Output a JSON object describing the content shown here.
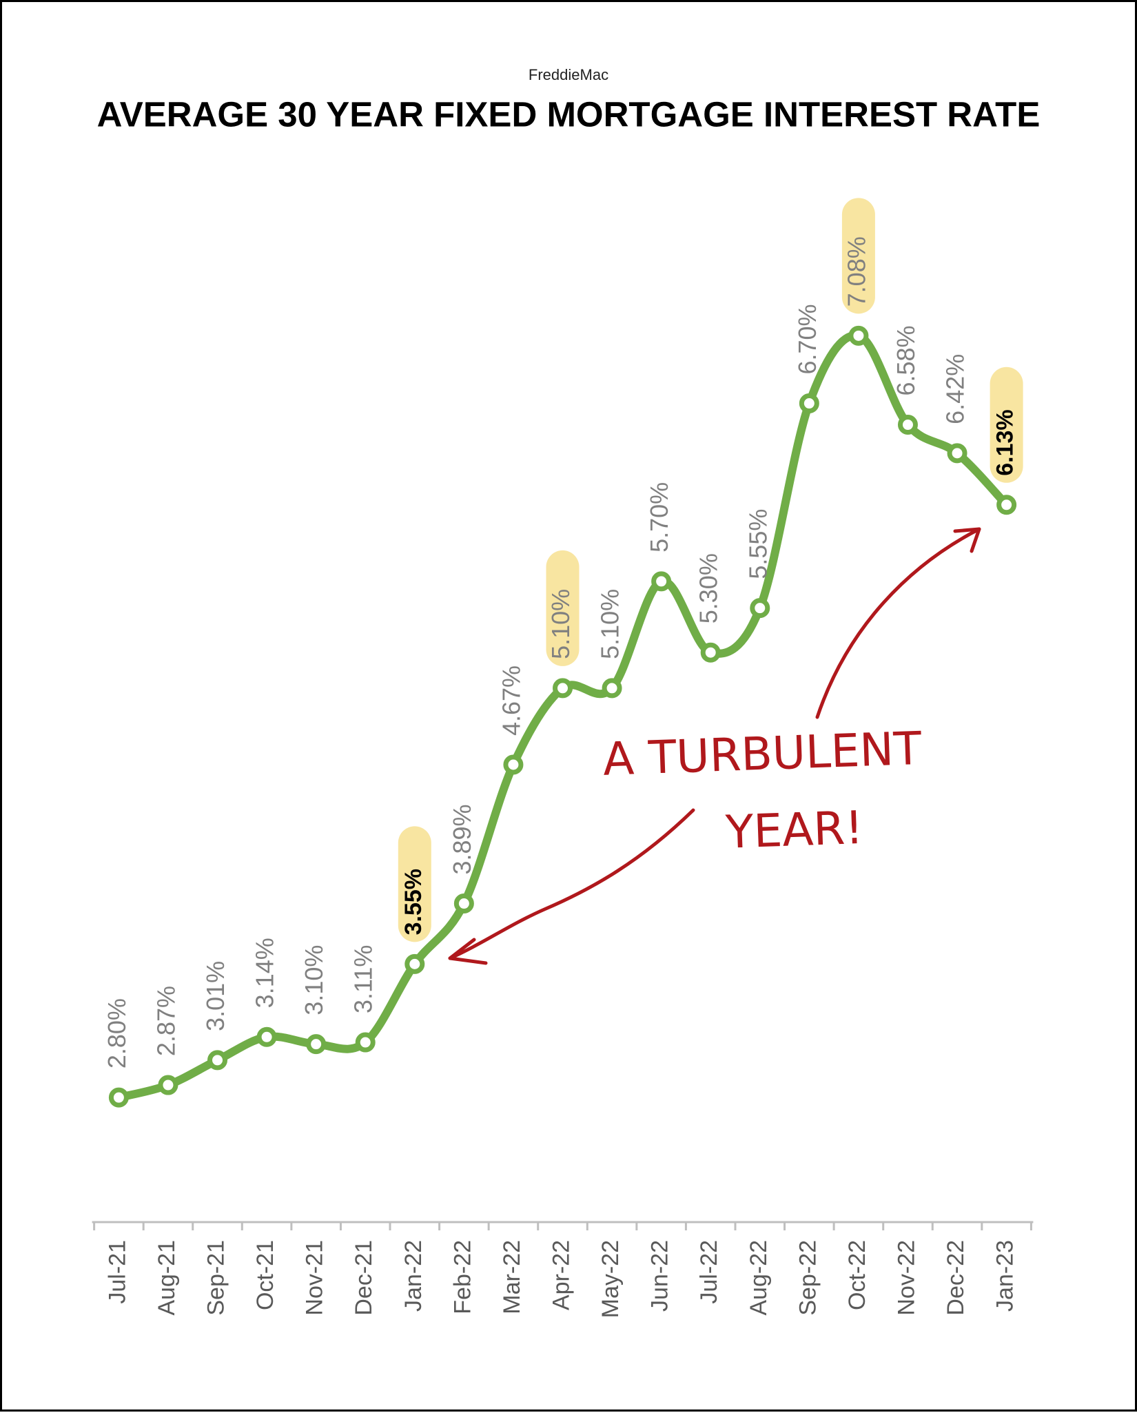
{
  "chart_data": {
    "type": "line",
    "subtitle": "FreddieMac",
    "title": "AVERAGE 30 YEAR FIXED MORTGAGE INTEREST RATE",
    "categories": [
      "Jul-21",
      "Aug-21",
      "Sep-21",
      "Oct-21",
      "Nov-21",
      "Dec-21",
      "Jan-22",
      "Feb-22",
      "Mar-22",
      "Apr-22",
      "May-22",
      "Jun-22",
      "Jul-22",
      "Aug-22",
      "Sep-22",
      "Oct-22",
      "Nov-22",
      "Dec-22",
      "Jan-23"
    ],
    "values": [
      2.8,
      2.87,
      3.01,
      3.14,
      3.1,
      3.11,
      3.55,
      3.89,
      4.67,
      5.1,
      5.1,
      5.7,
      5.3,
      5.55,
      6.7,
      7.08,
      6.58,
      6.42,
      6.13
    ],
    "value_labels": [
      "2.80%",
      "2.87%",
      "3.01%",
      "3.14%",
      "3.10%",
      "3.11%",
      "3.55%",
      "3.89%",
      "4.67%",
      "5.10%",
      "5.10%",
      "5.70%",
      "5.30%",
      "5.55%",
      "6.70%",
      "7.08%",
      "6.58%",
      "6.42%",
      "6.13%"
    ],
    "highlight": [
      false,
      false,
      false,
      false,
      false,
      false,
      true,
      false,
      false,
      true,
      false,
      false,
      false,
      false,
      false,
      true,
      false,
      false,
      true
    ],
    "bold_labels": [
      false,
      false,
      false,
      false,
      false,
      false,
      true,
      false,
      false,
      false,
      false,
      false,
      false,
      false,
      false,
      false,
      false,
      false,
      true
    ],
    "highlight_color": "#f8e5a1",
    "color": "#70ad47",
    "label_color": "#808080",
    "ylim": [
      2.1,
      7.6
    ],
    "annotation": [
      "A TURBULENT",
      "YEAR!"
    ],
    "annotation_color": "#b0181c"
  }
}
